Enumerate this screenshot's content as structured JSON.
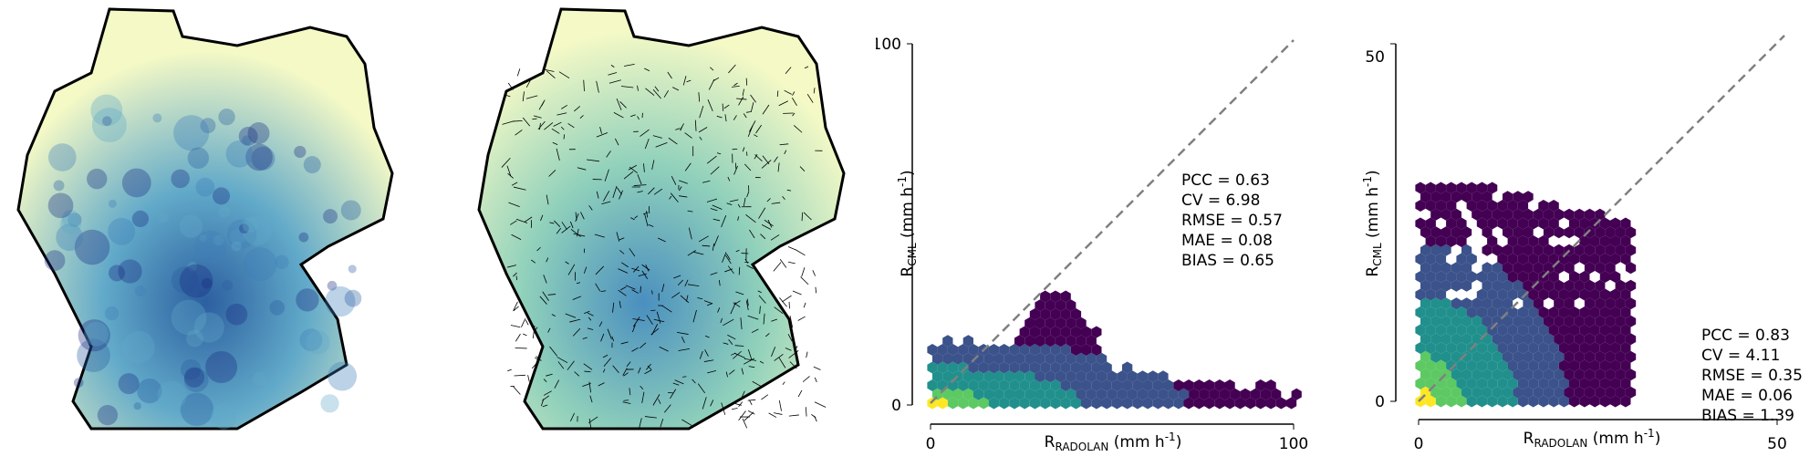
{
  "panels": {
    "map1": {
      "content": "radar-rainfall-map"
    },
    "map2": {
      "content": "cml-rainfall-map"
    }
  },
  "colors": {
    "map_low": "#f4f9c6",
    "map_mid": "#8fd0bb",
    "map_high": "#2c5fa0",
    "map_max": "#1a2c80",
    "border": "#000000",
    "hex_low": "#440154",
    "hex_mid": "#3b528b",
    "hex_mid2": "#21908d",
    "hex_high": "#5dc963",
    "hex_max": "#fde725",
    "diagonal": "#808080"
  },
  "chart_data": [
    {
      "type": "hexbin",
      "xlabel_base": "R",
      "xlabel_sub": "RADOLAN",
      "xlabel_unit": " (mm h",
      "xlabel_sup": "-1",
      "xlabel_close": ")",
      "ylabel_base": "R",
      "ylabel_sub": "CML",
      "ylabel_unit": " (mm h",
      "ylabel_sup": "-1",
      "ylabel_close": ")",
      "xlim": [
        0,
        100
      ],
      "ylim": [
        0,
        100
      ],
      "xticks": [
        "0",
        "100"
      ],
      "yticks": [
        "0",
        "100"
      ],
      "diagonal": true,
      "stats": [
        "PCC = 0.63",
        "CV = 6.98",
        "RMSE = 0.57",
        "MAE = 0.08",
        "BIAS = 0.65"
      ]
    },
    {
      "type": "hexbin",
      "xlabel_base": "R",
      "xlabel_sub": "RADOLAN",
      "xlabel_unit": " (mm h",
      "xlabel_sup": "-1",
      "xlabel_close": ")",
      "ylabel_base": "R",
      "ylabel_sub": "CML",
      "ylabel_unit": " (mm h",
      "ylabel_sup": "-1",
      "ylabel_close": ")",
      "xlim": [
        0,
        50
      ],
      "ylim": [
        0,
        50
      ],
      "xticks": [
        "0",
        "50"
      ],
      "yticks": [
        "0",
        "50"
      ],
      "diagonal": true,
      "stats": [
        "PCC = 0.83",
        "CV = 4.11",
        "RMSE = 0.35",
        "MAE = 0.06",
        "BIAS = 1.39"
      ]
    }
  ]
}
